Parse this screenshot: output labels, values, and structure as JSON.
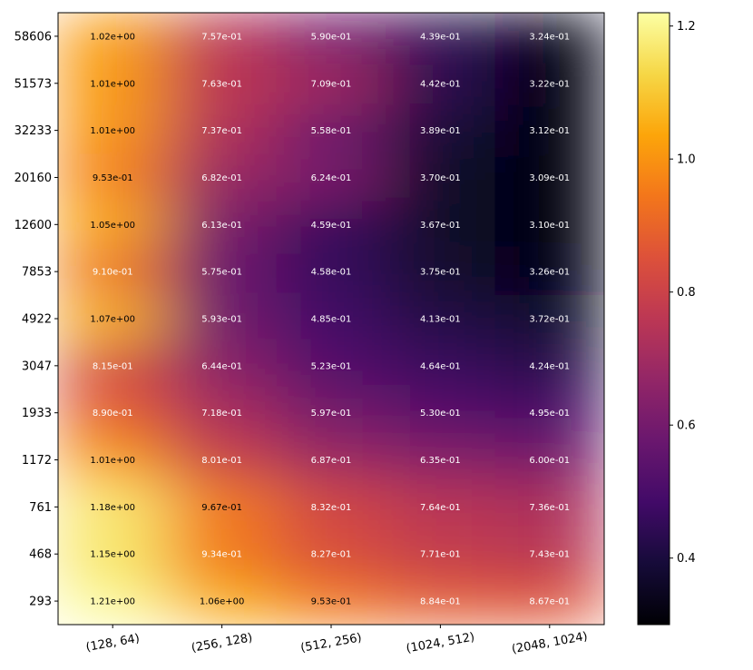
{
  "chart_data": {
    "type": "heatmap",
    "title": "",
    "xlabel": "",
    "ylabel": "",
    "x_categories": [
      "(128, 64)",
      "(256, 128)",
      "(512, 256)",
      "(1024, 512)",
      "(2048, 1024)"
    ],
    "y_categories": [
      "58606",
      "51573",
      "32233",
      "20160",
      "12600",
      "7853",
      "4922",
      "3047",
      "1933",
      "1172",
      "761",
      "468",
      "293"
    ],
    "values": [
      [
        1.02,
        0.757,
        0.59,
        0.439,
        0.324
      ],
      [
        1.01,
        0.763,
        0.709,
        0.442,
        0.322
      ],
      [
        1.01,
        0.737,
        0.558,
        0.389,
        0.312
      ],
      [
        0.953,
        0.682,
        0.624,
        0.37,
        0.309
      ],
      [
        1.05,
        0.613,
        0.459,
        0.367,
        0.31
      ],
      [
        0.91,
        0.575,
        0.458,
        0.375,
        0.326
      ],
      [
        1.07,
        0.593,
        0.485,
        0.413,
        0.372
      ],
      [
        0.815,
        0.644,
        0.523,
        0.464,
        0.424
      ],
      [
        0.89,
        0.718,
        0.597,
        0.53,
        0.495
      ],
      [
        1.01,
        0.801,
        0.687,
        0.635,
        0.6
      ],
      [
        1.18,
        0.967,
        0.832,
        0.764,
        0.736
      ],
      [
        1.15,
        0.934,
        0.827,
        0.771,
        0.743
      ],
      [
        1.21,
        1.06,
        0.953,
        0.884,
        0.867
      ]
    ],
    "labels": [
      [
        "1.02e+00",
        "7.57e-01",
        "5.90e-01",
        "4.39e-01",
        "3.24e-01"
      ],
      [
        "1.01e+00",
        "7.63e-01",
        "7.09e-01",
        "4.42e-01",
        "3.22e-01"
      ],
      [
        "1.01e+00",
        "7.37e-01",
        "5.58e-01",
        "3.89e-01",
        "3.12e-01"
      ],
      [
        "9.53e-01",
        "6.82e-01",
        "6.24e-01",
        "3.70e-01",
        "3.09e-01"
      ],
      [
        "1.05e+00",
        "6.13e-01",
        "4.59e-01",
        "3.67e-01",
        "3.10e-01"
      ],
      [
        "9.10e-01",
        "5.75e-01",
        "4.58e-01",
        "3.75e-01",
        "3.26e-01"
      ],
      [
        "1.07e+00",
        "5.93e-01",
        "4.85e-01",
        "4.13e-01",
        "3.72e-01"
      ],
      [
        "8.15e-01",
        "6.44e-01",
        "5.23e-01",
        "4.64e-01",
        "4.24e-01"
      ],
      [
        "8.90e-01",
        "7.18e-01",
        "5.97e-01",
        "5.30e-01",
        "4.95e-01"
      ],
      [
        "1.01e+00",
        "8.01e-01",
        "6.87e-01",
        "6.35e-01",
        "6.00e-01"
      ],
      [
        "1.18e+00",
        "9.67e-01",
        "8.32e-01",
        "7.64e-01",
        "7.36e-01"
      ],
      [
        "1.15e+00",
        "9.34e-01",
        "8.27e-01",
        "7.71e-01",
        "7.43e-01"
      ],
      [
        "1.21e+00",
        "1.06e+00",
        "9.53e-01",
        "8.84e-01",
        "8.67e-01"
      ]
    ],
    "colormap": "inferno",
    "vmin": 0.3,
    "vmax": 1.22,
    "colorbar": {
      "ticks": [
        0.4,
        0.6,
        0.8,
        1.0,
        1.2
      ],
      "tick_labels": [
        "0.4",
        "0.6",
        "0.8",
        "1.0",
        "1.2"
      ]
    },
    "interpolation": "smooth"
  }
}
